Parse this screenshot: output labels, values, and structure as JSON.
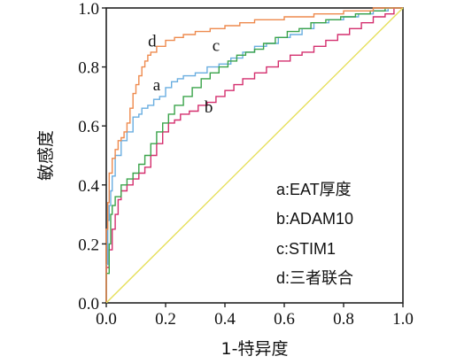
{
  "chart_data": {
    "type": "line",
    "title": "",
    "xlabel": "1-特异度",
    "ylabel": "敏感度",
    "xlim": [
      0,
      1
    ],
    "ylim": [
      0,
      1
    ],
    "x_ticks": [
      "0.0",
      "0.2",
      "0.4",
      "0.6",
      "0.8",
      "1.0"
    ],
    "y_ticks": [
      "0.0",
      "0.2",
      "0.4",
      "0.6",
      "0.8",
      "1.0"
    ],
    "grid": false,
    "legend_position": "bottom-right",
    "legend": [
      "a:EAT厚度",
      "b:ADAM10",
      "c:STIM1",
      "d:三者联合"
    ],
    "series": [
      {
        "id": "a",
        "color": "#6aaee0",
        "step": true,
        "x": [
          0,
          0.005,
          0.01,
          0.015,
          0.02,
          0.03,
          0.05,
          0.07,
          0.09,
          0.11,
          0.12,
          0.14,
          0.16,
          0.18,
          0.2,
          0.22,
          0.24,
          0.26,
          0.3,
          0.34,
          0.38,
          0.42,
          0.46,
          0.5,
          0.54,
          0.58,
          0.62,
          0.66,
          0.7,
          0.75,
          0.8,
          0.85,
          0.9,
          0.95,
          1.0
        ],
        "y": [
          0,
          0.13,
          0.28,
          0.33,
          0.38,
          0.43,
          0.5,
          0.55,
          0.58,
          0.63,
          0.64,
          0.66,
          0.67,
          0.69,
          0.7,
          0.73,
          0.75,
          0.76,
          0.77,
          0.78,
          0.8,
          0.81,
          0.83,
          0.85,
          0.87,
          0.88,
          0.9,
          0.91,
          0.93,
          0.95,
          0.96,
          0.97,
          0.98,
          0.99,
          1.0
        ]
      },
      {
        "id": "b",
        "color": "#d42f6e",
        "step": true,
        "x": [
          0,
          0.01,
          0.02,
          0.03,
          0.04,
          0.05,
          0.07,
          0.09,
          0.11,
          0.13,
          0.15,
          0.17,
          0.19,
          0.21,
          0.23,
          0.25,
          0.28,
          0.31,
          0.34,
          0.37,
          0.4,
          0.43,
          0.46,
          0.5,
          0.54,
          0.58,
          0.62,
          0.66,
          0.7,
          0.74,
          0.78,
          0.82,
          0.86,
          0.9,
          0.94,
          0.97,
          1.0
        ],
        "y": [
          0,
          0.12,
          0.18,
          0.25,
          0.3,
          0.35,
          0.38,
          0.4,
          0.42,
          0.44,
          0.46,
          0.5,
          0.54,
          0.58,
          0.61,
          0.62,
          0.64,
          0.65,
          0.67,
          0.68,
          0.7,
          0.72,
          0.74,
          0.76,
          0.78,
          0.8,
          0.82,
          0.84,
          0.85,
          0.87,
          0.89,
          0.91,
          0.93,
          0.95,
          0.97,
          0.98,
          1.0
        ]
      },
      {
        "id": "c",
        "color": "#3aa34a",
        "step": true,
        "x": [
          0,
          0.01,
          0.015,
          0.02,
          0.03,
          0.05,
          0.07,
          0.09,
          0.11,
          0.13,
          0.15,
          0.17,
          0.19,
          0.21,
          0.23,
          0.26,
          0.29,
          0.32,
          0.35,
          0.38,
          0.41,
          0.44,
          0.47,
          0.5,
          0.53,
          0.57,
          0.61,
          0.65,
          0.69,
          0.74,
          0.79,
          0.84,
          0.89,
          0.94,
          1.0
        ],
        "y": [
          0,
          0.1,
          0.2,
          0.3,
          0.33,
          0.36,
          0.4,
          0.42,
          0.44,
          0.47,
          0.5,
          0.54,
          0.58,
          0.61,
          0.64,
          0.67,
          0.7,
          0.73,
          0.76,
          0.78,
          0.8,
          0.82,
          0.84,
          0.85,
          0.86,
          0.88,
          0.9,
          0.92,
          0.93,
          0.95,
          0.96,
          0.97,
          0.98,
          0.99,
          1.0
        ]
      },
      {
        "id": "d",
        "color": "#ee8a4e",
        "step": true,
        "x": [
          0,
          0.005,
          0.01,
          0.02,
          0.03,
          0.04,
          0.05,
          0.06,
          0.07,
          0.08,
          0.09,
          0.1,
          0.11,
          0.12,
          0.13,
          0.14,
          0.15,
          0.17,
          0.2,
          0.23,
          0.26,
          0.3,
          0.35,
          0.4,
          0.45,
          0.5,
          0.55,
          0.6,
          0.65,
          0.7,
          0.75,
          0.8,
          0.85,
          0.9,
          0.95,
          1.0
        ],
        "y": [
          0,
          0.25,
          0.34,
          0.44,
          0.49,
          0.52,
          0.55,
          0.56,
          0.58,
          0.61,
          0.66,
          0.71,
          0.74,
          0.77,
          0.8,
          0.82,
          0.84,
          0.85,
          0.87,
          0.89,
          0.9,
          0.91,
          0.92,
          0.93,
          0.94,
          0.95,
          0.96,
          0.96,
          0.97,
          0.97,
          0.98,
          0.98,
          0.99,
          0.99,
          1.0,
          1.0
        ]
      },
      {
        "id": "reference",
        "color": "#e6df5a",
        "step": false,
        "x": [
          0,
          1
        ],
        "y": [
          0,
          1
        ]
      }
    ],
    "curve_labels": [
      {
        "text": "a",
        "x": 0.17,
        "y": 0.72
      },
      {
        "text": "b",
        "x": 0.345,
        "y": 0.645
      },
      {
        "text": "c",
        "x": 0.37,
        "y": 0.855
      },
      {
        "text": "d",
        "x": 0.155,
        "y": 0.87
      }
    ]
  }
}
